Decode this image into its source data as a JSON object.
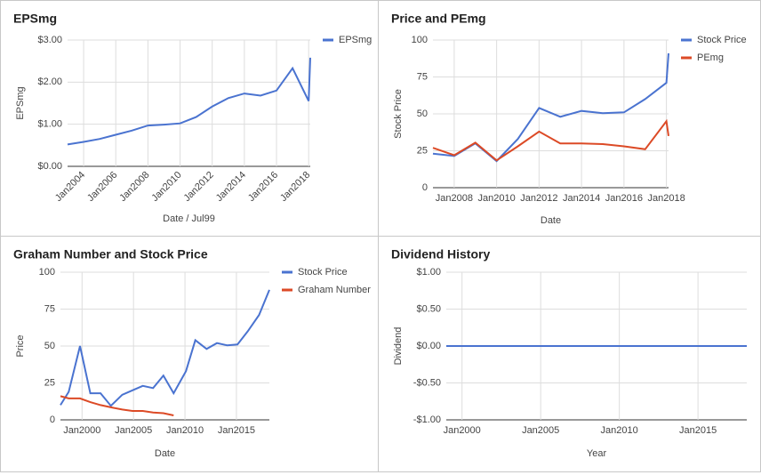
{
  "chart_data": [
    {
      "type": "line",
      "title": "EPSmg",
      "x_label": "Date / Jul99",
      "y_label": "EPSmg",
      "xlim": [
        2003,
        2018.1
      ],
      "xticks": [
        {
          "value": 2004,
          "label": "Jan2004"
        },
        {
          "value": 2006,
          "label": "Jan2006"
        },
        {
          "value": 2008,
          "label": "Jan2008"
        },
        {
          "value": 2010,
          "label": "Jan2010"
        },
        {
          "value": 2012,
          "label": "Jan2012"
        },
        {
          "value": 2014,
          "label": "Jan2014"
        },
        {
          "value": 2016,
          "label": "Jan2016"
        },
        {
          "value": 2018,
          "label": "Jan2018"
        }
      ],
      "ylim": [
        0,
        3
      ],
      "yticks": [
        {
          "value": 0,
          "label": "$0.00"
        },
        {
          "value": 1,
          "label": "$1.00"
        },
        {
          "value": 2,
          "label": "$2.00"
        },
        {
          "value": 3,
          "label": "$3.00"
        }
      ],
      "grid": true,
      "legend": "right",
      "series": [
        {
          "name": "EPSmg",
          "color": "#4a73d0",
          "x": [
            2003,
            2004,
            2005,
            2006,
            2007,
            2008,
            2009,
            2010,
            2011,
            2012,
            2013,
            2014,
            2015,
            2016,
            2017,
            2018,
            2018.1
          ],
          "values": [
            0.52,
            0.58,
            0.65,
            0.75,
            0.85,
            0.97,
            0.99,
            1.02,
            1.17,
            1.42,
            1.62,
            1.73,
            1.68,
            1.8,
            2.33,
            1.55,
            2.58
          ]
        }
      ]
    },
    {
      "type": "line",
      "title": "Price and PEmg",
      "x_label": "Date",
      "y_label": "Stock Price",
      "xlim": [
        2007,
        2018.1
      ],
      "xticks": [
        {
          "value": 2008,
          "label": "Jan2008"
        },
        {
          "value": 2010,
          "label": "Jan2010"
        },
        {
          "value": 2012,
          "label": "Jan2012"
        },
        {
          "value": 2014,
          "label": "Jan2014"
        },
        {
          "value": 2016,
          "label": "Jan2016"
        },
        {
          "value": 2018,
          "label": "Jan2018"
        }
      ],
      "ylim": [
        0,
        100
      ],
      "yticks": [
        0,
        25,
        50,
        75,
        100
      ],
      "grid": true,
      "legend": "right",
      "series": [
        {
          "name": "Stock Price",
          "color": "#4a73d0",
          "x": [
            2007,
            2008,
            2009,
            2010,
            2011,
            2012,
            2013,
            2014,
            2015,
            2016,
            2017,
            2018,
            2018.1
          ],
          "values": [
            23,
            21.5,
            30,
            18,
            33,
            54,
            48,
            52,
            50.5,
            51,
            60,
            71,
            91
          ]
        },
        {
          "name": "PEmg",
          "color": "#dc4a26",
          "x": [
            2007,
            2008,
            2009,
            2010,
            2011,
            2012,
            2013,
            2014,
            2015,
            2016,
            2017,
            2018,
            2018.1
          ],
          "values": [
            27,
            22,
            30.5,
            18.5,
            28,
            38,
            30,
            30,
            29.5,
            28,
            26,
            45,
            35
          ]
        }
      ]
    },
    {
      "type": "line",
      "title": "Graham Number and Stock Price",
      "x_label": "Date",
      "y_label": "Price",
      "xlim": [
        1997.9,
        2018.2
      ],
      "xticks": [
        {
          "value": 2000,
          "label": "Jan2000"
        },
        {
          "value": 2005,
          "label": "Jan2005"
        },
        {
          "value": 2010,
          "label": "Jan2010"
        },
        {
          "value": 2015,
          "label": "Jan2015"
        }
      ],
      "ylim": [
        0,
        100
      ],
      "yticks": [
        0,
        25,
        50,
        75,
        100
      ],
      "grid": true,
      "legend": "right",
      "series": [
        {
          "name": "Stock Price",
          "color": "#4a73d0",
          "x": [
            1997.9,
            1998.7,
            1999.8,
            2000.8,
            2001.8,
            2002.8,
            2003.9,
            2004.9,
            2005.9,
            2006.9,
            2007.9,
            2008.9,
            2010.1,
            2011.0,
            2012.1,
            2013.1,
            2014.1,
            2015.1,
            2016.1,
            2017.2,
            2018.2
          ],
          "values": [
            10,
            19,
            50,
            18,
            18,
            9.5,
            17,
            20,
            23,
            21.5,
            30,
            18,
            33,
            54,
            48,
            52,
            50.5,
            51,
            60,
            71,
            88
          ]
        },
        {
          "name": "Graham Number",
          "color": "#dc4a26",
          "x": [
            1997.9,
            1998.7,
            1999.8,
            2000.8,
            2001.8,
            2002.8,
            2003.9,
            2004.9,
            2005.9,
            2006.9,
            2007.9,
            2008.9
          ],
          "values": [
            16,
            14.5,
            14.5,
            12,
            10,
            8.5,
            7,
            6,
            6,
            5,
            4.5,
            3
          ]
        }
      ]
    },
    {
      "type": "line",
      "title": "Dividend History",
      "x_label": "Year",
      "y_label": "Dividend",
      "xlim": [
        1999,
        2018.1
      ],
      "xticks": [
        {
          "value": 2000,
          "label": "Jan2000"
        },
        {
          "value": 2005,
          "label": "Jan2005"
        },
        {
          "value": 2010,
          "label": "Jan2010"
        },
        {
          "value": 2015,
          "label": "Jan2015"
        }
      ],
      "ylim": [
        -1,
        1
      ],
      "yticks": [
        {
          "value": -1,
          "label": "-$1.00"
        },
        {
          "value": -0.5,
          "label": "-$0.50"
        },
        {
          "value": 0,
          "label": "$0.00"
        },
        {
          "value": 0.5,
          "label": "$0.50"
        },
        {
          "value": 1,
          "label": "$1.00"
        }
      ],
      "grid": true,
      "series": [
        {
          "color": "#4a73d0",
          "x": [
            1999,
            2000,
            2001,
            2002,
            2003,
            2004,
            2005,
            2006,
            2007,
            2008,
            2009,
            2010,
            2011,
            2012,
            2013,
            2014,
            2015,
            2016,
            2017,
            2018.1
          ],
          "values": [
            0,
            0,
            0,
            0,
            0,
            0,
            0,
            0,
            0,
            0,
            0,
            0,
            0,
            0,
            0,
            0,
            0,
            0,
            0,
            0
          ]
        }
      ]
    }
  ]
}
